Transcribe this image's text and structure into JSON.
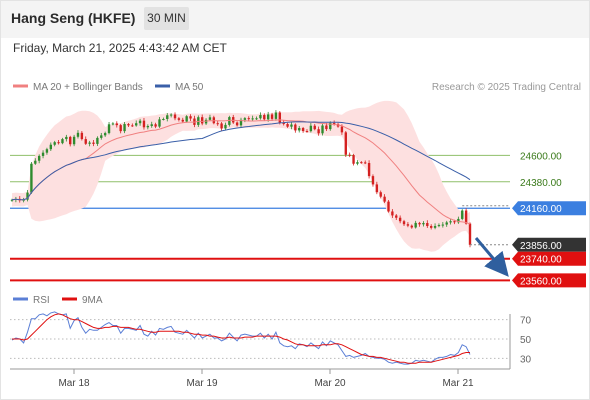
{
  "header": {
    "title": "Hang Seng (HKFE)",
    "timeframe": "30 MIN",
    "datetime": "Friday, March 21, 2025 4:43:42 AM CET"
  },
  "legend": {
    "bb_label": "MA 20 + Bollinger Bands",
    "ma50_label": "MA 50",
    "credit": "Research © 2025 Trading Central"
  },
  "rsi_legend": {
    "rsi_label": "RSI",
    "ma_label": "9MA"
  },
  "colors": {
    "bb": "#f08080",
    "bb_fill": "#fde0e0",
    "ma50": "#3a5fa8",
    "up": "#2e8b2e",
    "down": "#d42020",
    "resistance": "#8fbf6a",
    "pivot": "#3b7fe0",
    "support": "#e01010",
    "last": "#333333",
    "rsi": "#5b7fd6",
    "rsi_ma": "#e01010",
    "arrow": "#2f5f9e"
  },
  "chart_data": [
    {
      "type": "candlestick",
      "x_ticks": [
        "Mar 18",
        "Mar 19",
        "Mar 20",
        "Mar 21"
      ],
      "y_range": [
        23480,
        25060
      ],
      "price_levels": [
        {
          "label": "24600.00",
          "value": 24600,
          "kind": "resistance"
        },
        {
          "label": "24380.00",
          "value": 24380,
          "kind": "resistance"
        },
        {
          "label": "24160.00",
          "value": 24160,
          "kind": "pivot"
        },
        {
          "label": "23856.00",
          "value": 23856,
          "kind": "last"
        },
        {
          "label": "23740.00",
          "value": 23740,
          "kind": "support"
        },
        {
          "label": "23560.00",
          "value": 23560,
          "kind": "support"
        }
      ],
      "close_values": [
        24230,
        24238,
        24225,
        24231,
        24290,
        24530,
        24555,
        24595,
        24622,
        24651,
        24688,
        24709,
        24701,
        24735,
        24753,
        24692,
        24754,
        24787,
        24735,
        24696,
        24706,
        24695,
        24745,
        24766,
        24785,
        24858,
        24865,
        24851,
        24801,
        24860,
        24849,
        24848,
        24867,
        24888,
        24833,
        24844,
        24858,
        24839,
        24899,
        24902,
        24933,
        24939,
        24908,
        24895,
        24881,
        24925,
        24906,
        24853,
        24917,
        24865,
        24895,
        24916,
        24867,
        24865,
        24823,
        24853,
        24918,
        24873,
        24849,
        24895,
        24909,
        24901,
        24907,
        24908,
        24935,
        24899,
        24940,
        24903,
        24956,
        24871,
        24860,
        24838,
        24856,
        24807,
        24827,
        24802,
        24801,
        24846,
        24817,
        24783,
        24848,
        24818,
        24870,
        24859,
        24839,
        24791,
        24605,
        24602,
        24530,
        24543,
        24541,
        24536,
        24427,
        24358,
        24293,
        24256,
        24215,
        24133,
        24100,
        24081,
        24052,
        24027,
        24015,
        24000,
        24038,
        24026,
        24037,
        24012,
        23997,
        24012,
        24020,
        24024,
        24042,
        24052,
        24043,
        24071,
        24141,
        24032,
        23856
      ]
    },
    {
      "type": "line",
      "title": "RSI",
      "y_ticks": [
        70,
        50,
        30
      ],
      "series": [
        {
          "name": "RSI",
          "values": [
            49,
            51,
            50,
            46,
            57,
            71,
            71,
            75,
            76,
            74,
            77,
            78,
            76,
            75,
            76,
            61,
            69,
            72,
            62,
            56,
            60,
            59,
            59,
            62,
            65,
            67,
            64,
            64,
            56,
            61,
            61,
            60,
            59,
            64,
            55,
            53,
            58,
            54,
            61,
            60,
            62,
            63,
            57,
            56,
            55,
            59,
            55,
            51,
            56,
            51,
            53,
            55,
            51,
            51,
            48,
            50,
            56,
            52,
            48,
            54,
            55,
            54,
            53,
            53,
            56,
            51,
            55,
            50,
            57,
            46,
            43,
            42,
            43,
            40,
            45,
            44,
            42,
            46,
            43,
            40,
            47,
            43,
            48,
            46,
            44,
            38,
            32,
            33,
            31,
            32,
            33,
            35,
            32,
            31,
            30,
            30,
            29,
            26,
            25,
            26,
            25,
            24,
            24,
            25,
            28,
            27,
            28,
            27,
            26,
            29,
            31,
            31,
            32,
            34,
            33,
            36,
            44,
            42,
            34
          ]
        },
        {
          "name": "9MA",
          "values": [
            50,
            50,
            50,
            49,
            50,
            54,
            58,
            62,
            66,
            70,
            73,
            75,
            76,
            75,
            73,
            71,
            70,
            70,
            68,
            66,
            64,
            62,
            61,
            61,
            62,
            62,
            63,
            63,
            62,
            62,
            62,
            61,
            60,
            60,
            59,
            58,
            57,
            57,
            58,
            58,
            58,
            58,
            58,
            58,
            57,
            57,
            56,
            55,
            55,
            54,
            54,
            53,
            53,
            52,
            51,
            51,
            52,
            51,
            51,
            51,
            52,
            52,
            52,
            53,
            53,
            53,
            53,
            53,
            53,
            52,
            50,
            49,
            47,
            45,
            44,
            44,
            43,
            43,
            43,
            43,
            44,
            44,
            44,
            45,
            45,
            44,
            42,
            40,
            38,
            36,
            34,
            33,
            32,
            32,
            31,
            31,
            30,
            29,
            28,
            27,
            26,
            26,
            25,
            25,
            25,
            26,
            26,
            26,
            26,
            27,
            28,
            29,
            30,
            31,
            32,
            33,
            35,
            36,
            36
          ]
        }
      ]
    }
  ]
}
